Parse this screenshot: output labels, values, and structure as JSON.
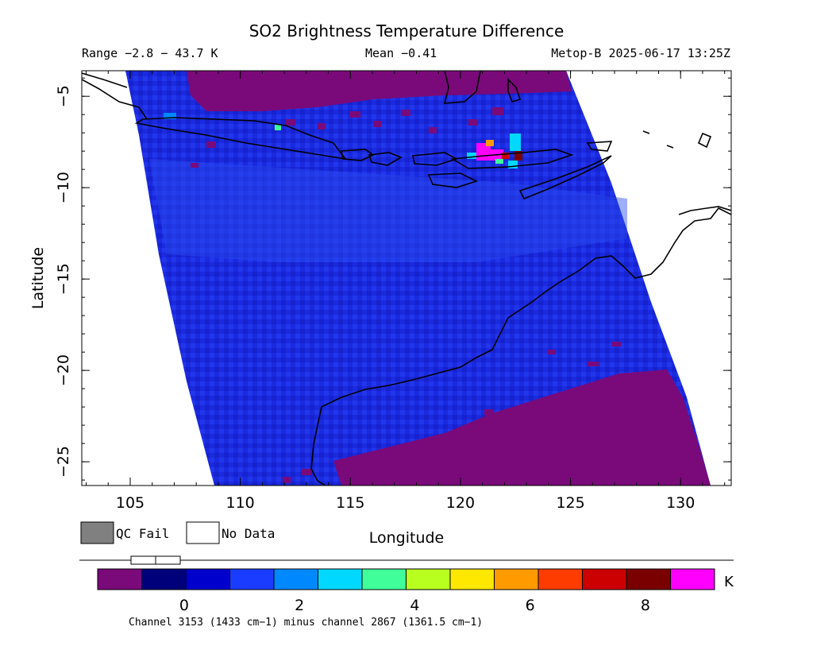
{
  "header": {
    "title": "SO2 Brightness Temperature Difference",
    "range_text": "Range −2.8 − 43.7 K",
    "mean_text": "Mean −0.41",
    "satellite_time": "Metop-B 2025-06-17 13:25Z"
  },
  "chart_data": {
    "type": "heatmap",
    "title": "SO2 Brightness Temperature Difference",
    "xlabel": "Longitude",
    "ylabel": "Latitude",
    "xlim": [
      102.8,
      132.3
    ],
    "ylim": [
      -26.3,
      -3.6
    ],
    "x_ticks": [
      105,
      110,
      115,
      120,
      125,
      130
    ],
    "y_ticks": [
      -5,
      -10,
      -15,
      -20,
      -25
    ],
    "range": [
      -2.8,
      43.7
    ],
    "units": "K",
    "mean": -0.41,
    "hotspot": {
      "lon": 122,
      "lat": -8.5
    },
    "colorbar": {
      "ticks": [
        0,
        2,
        4,
        6,
        8
      ],
      "min": -1.5,
      "max": 9.2,
      "units": "K",
      "colors": [
        "#7a0a7a",
        "#00007a",
        "#0000cc",
        "#1a3cff",
        "#0088ff",
        "#00d8ff",
        "#40ff9a",
        "#b8ff20",
        "#ffe800",
        "#ff9a00",
        "#ff3c00",
        "#cc0000",
        "#7a0000",
        "#ff00ff"
      ]
    }
  },
  "legend": {
    "qc_fail": "QC Fail",
    "no_data": "No Data",
    "qc_fail_color": "#808080",
    "no_data_color": "#ffffff"
  },
  "footer": {
    "channel_note": "Channel 3153 (1433 cm−1) minus channel 2867 (1361.5 cm−1)"
  },
  "colors": {
    "land_mask": "#7a0a7a",
    "background_field": "#1a2ae0",
    "hotspot": "#ff00ff"
  }
}
